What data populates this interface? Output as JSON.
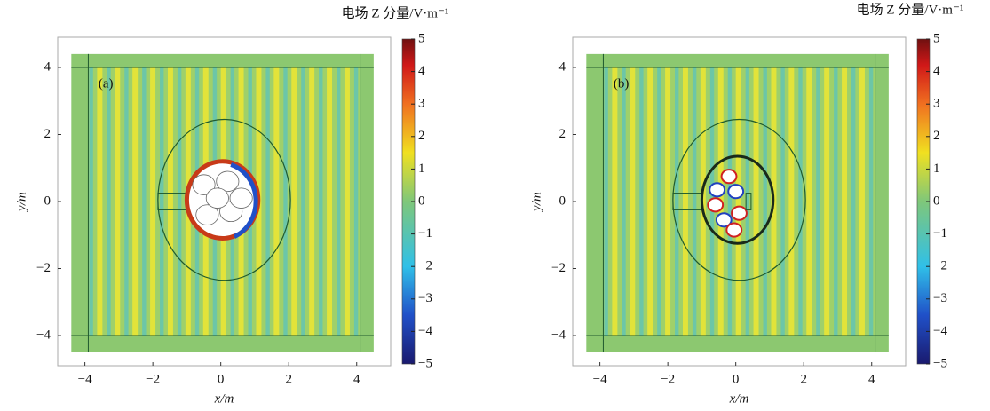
{
  "chart_data": [
    {
      "type": "field",
      "panel_label": "(a)",
      "colorbar_title": "电场 Z 分量/V·m⁻¹",
      "xlabel": "x/m",
      "ylabel": "y/m",
      "xlim": [
        -4.8,
        5.0
      ],
      "ylim": [
        -4.9,
        4.9
      ],
      "xticks": [
        {
          "value": -4,
          "label": "−4"
        },
        {
          "value": -2,
          "label": "−2"
        },
        0,
        2,
        4
      ],
      "yticks": [
        {
          "value": -4,
          "label": "−4"
        },
        {
          "value": -2,
          "label": "−2"
        },
        0,
        2,
        4
      ],
      "colorbar_lim": [
        -5,
        5
      ],
      "colorbar_ticks": [
        {
          "value": -5,
          "label": "−5"
        },
        {
          "value": -4,
          "label": "−4"
        },
        {
          "value": -3,
          "label": "−3"
        },
        {
          "value": -2,
          "label": "−2"
        },
        {
          "value": -1,
          "label": "−1"
        },
        0,
        1,
        2,
        3,
        4,
        5
      ]
    },
    {
      "type": "field",
      "panel_label": "(b)",
      "colorbar_title": "电场 Z 分量/V·m⁻¹",
      "xlabel": "x/m",
      "ylabel": "y/m",
      "xlim": [
        -4.8,
        5.0
      ],
      "ylim": [
        -4.9,
        4.9
      ],
      "xticks": [
        {
          "value": -4,
          "label": "−4"
        },
        {
          "value": -2,
          "label": "−2"
        },
        0,
        2,
        4
      ],
      "yticks": [
        {
          "value": -4,
          "label": "−4"
        },
        {
          "value": -2,
          "label": "−2"
        },
        0,
        2,
        4
      ],
      "colorbar_lim": [
        -5,
        5
      ],
      "colorbar_ticks": [
        {
          "value": -5,
          "label": "−5"
        },
        {
          "value": -4,
          "label": "−4"
        },
        {
          "value": -3,
          "label": "−3"
        },
        {
          "value": -2,
          "label": "−2"
        },
        {
          "value": -1,
          "label": "−1"
        },
        0,
        1,
        2,
        3,
        4,
        5
      ]
    }
  ]
}
